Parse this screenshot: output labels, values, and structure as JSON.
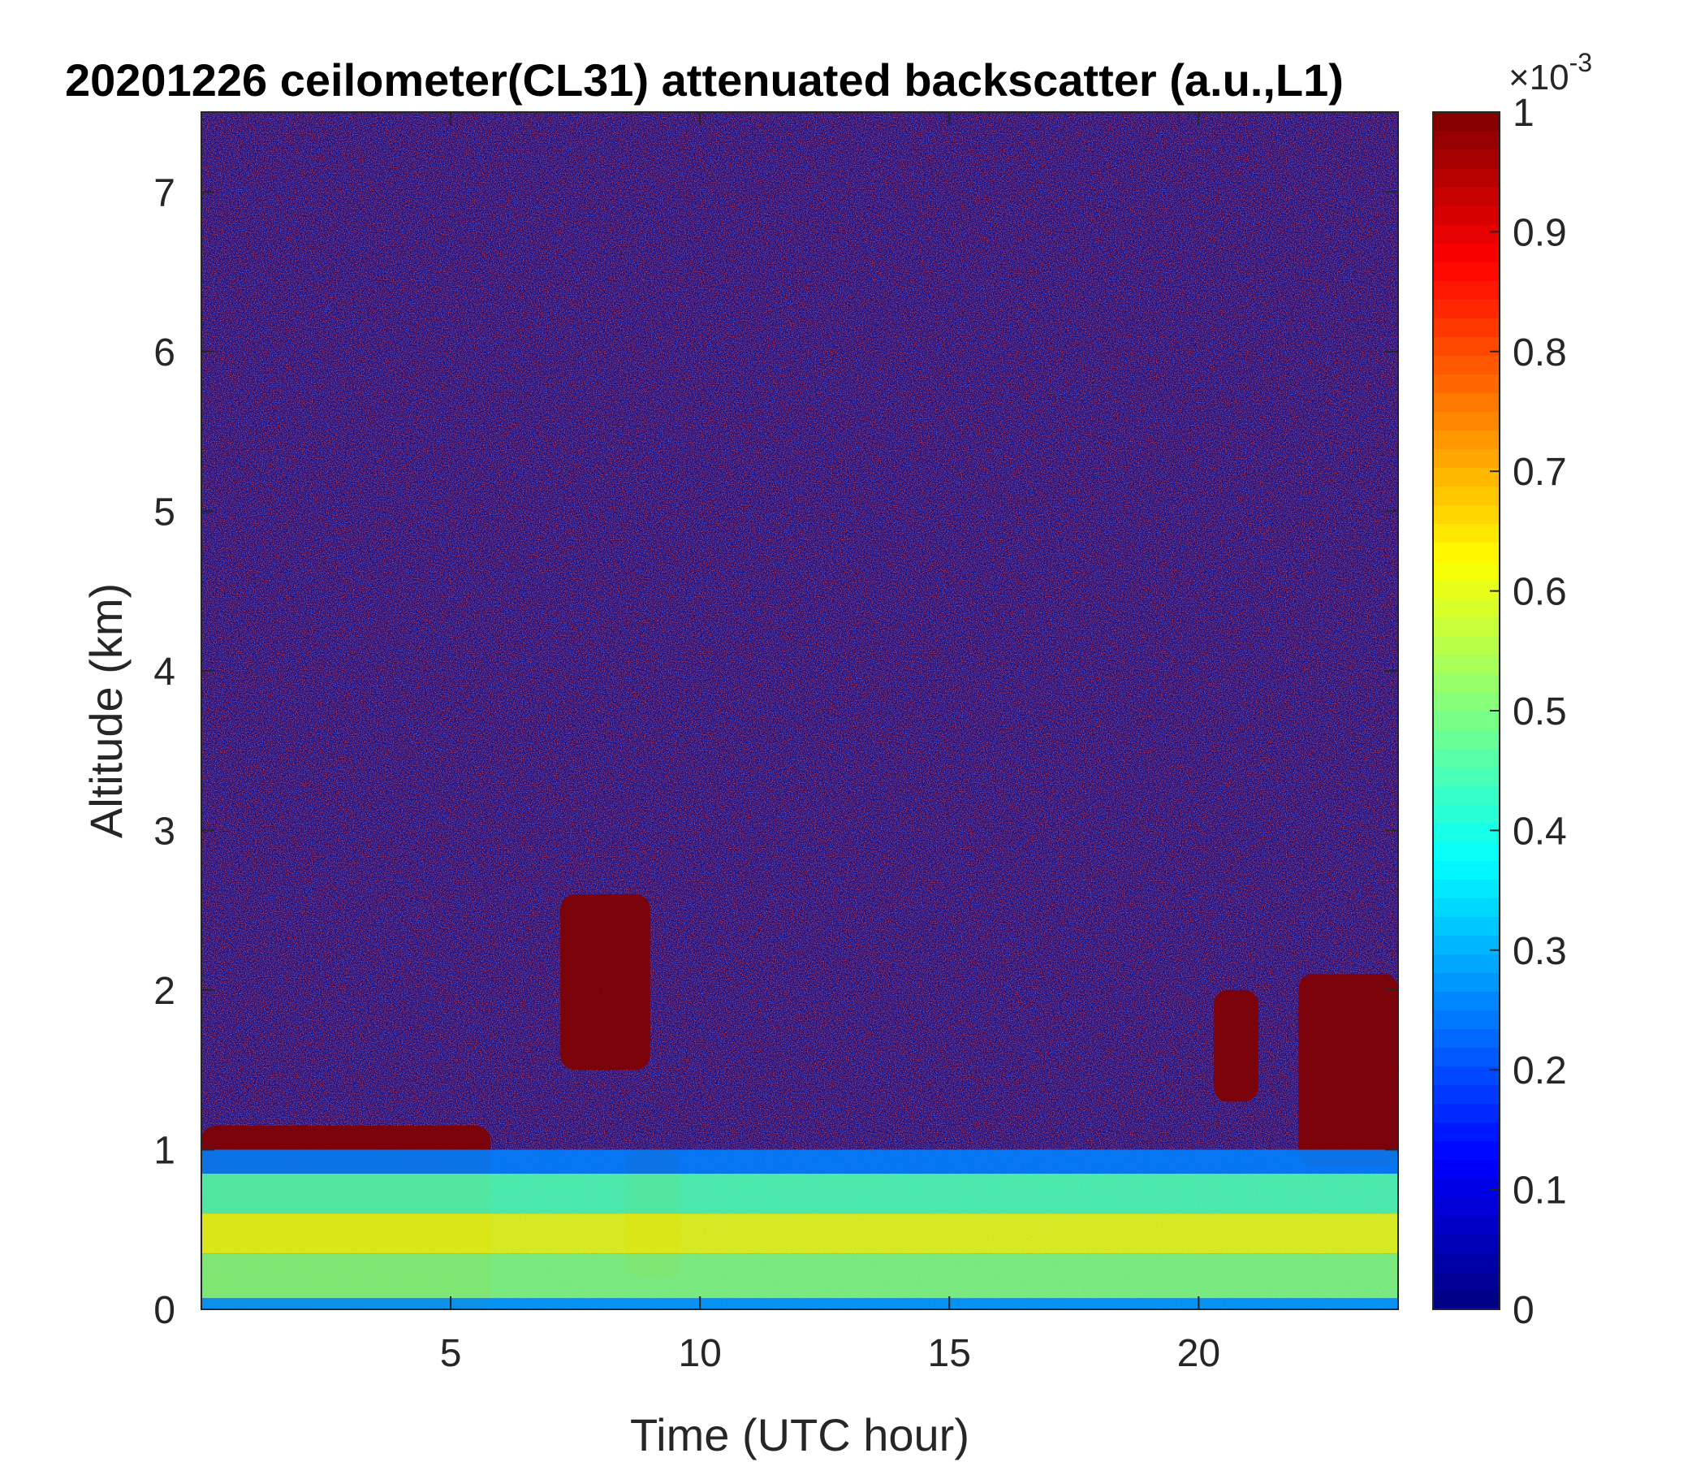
{
  "chart_data": {
    "type": "heatmap",
    "title": "20201226 ceilometer(CL31) attenuated backscatter (a.u.,L1)",
    "xlabel": "Time (UTC hour)",
    "ylabel": "Altitude (km)",
    "xlim": [
      0,
      24
    ],
    "ylim": [
      0,
      7.5
    ],
    "xticks": [
      5,
      10,
      15,
      20
    ],
    "yticks": [
      0,
      1,
      2,
      3,
      4,
      5,
      6,
      7
    ],
    "colorbar": {
      "colormap": "jet",
      "clim": [
        0,
        1
      ],
      "ticks": [
        0,
        0.1,
        0.2,
        0.3,
        0.4,
        0.5,
        0.6,
        0.7,
        0.8,
        0.9,
        1
      ],
      "exponent_base": "×10",
      "exponent_power": "-3"
    },
    "features": [
      {
        "kind": "cloud",
        "x_range": [
          0,
          5.8
        ],
        "alt_range_km": [
          0.0,
          1.15
        ]
      },
      {
        "kind": "cloud",
        "x_range": [
          7.2,
          9.0
        ],
        "alt_range_km": [
          1.5,
          2.6
        ]
      },
      {
        "kind": "cloud",
        "x_range": [
          8.5,
          9.6
        ],
        "alt_range_km": [
          0.2,
          1.0
        ]
      },
      {
        "kind": "cloud",
        "x_range": [
          20.3,
          21.2
        ],
        "alt_range_km": [
          1.3,
          2.0
        ]
      },
      {
        "kind": "cloud",
        "x_range": [
          22.0,
          24.0
        ],
        "alt_range_km": [
          0.9,
          2.1
        ]
      },
      {
        "kind": "aerosol_layer",
        "x_range": [
          0,
          24
        ],
        "alt_range_km": [
          0,
          1.0
        ]
      }
    ]
  }
}
